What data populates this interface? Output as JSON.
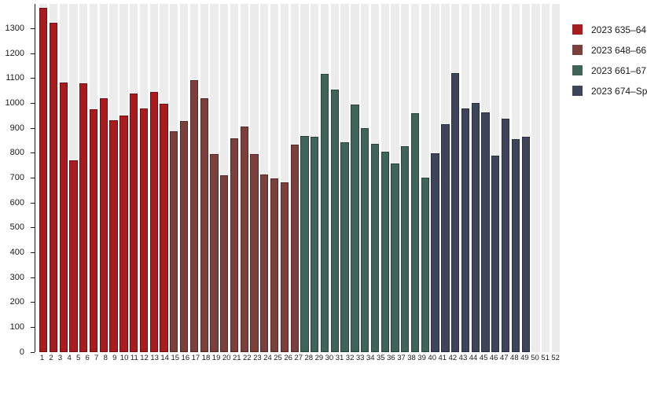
{
  "chart_data": {
    "type": "bar",
    "x": [
      1,
      2,
      3,
      4,
      5,
      6,
      7,
      8,
      9,
      10,
      11,
      12,
      13,
      14,
      15,
      16,
      17,
      18,
      19,
      20,
      21,
      22,
      23,
      24,
      25,
      26,
      27,
      28,
      29,
      30,
      31,
      32,
      33,
      34,
      35,
      36,
      37,
      38,
      39,
      40,
      41,
      42,
      43,
      44,
      45,
      46,
      47,
      48,
      49,
      50,
      51,
      52
    ],
    "values": [
      1385,
      1325,
      1085,
      772,
      1080,
      975,
      1020,
      931,
      952,
      1040,
      979,
      1046,
      999,
      888,
      929,
      1095,
      1022,
      796,
      712,
      861,
      907,
      796,
      715,
      700,
      684,
      835,
      870,
      866,
      1118,
      1057,
      844,
      995,
      900,
      838,
      806,
      760,
      827,
      962,
      703,
      800,
      917,
      1122,
      980,
      1001,
      965,
      789,
      940,
      857,
      865,
      null,
      null,
      null
    ],
    "groups": [
      {
        "label": "2023 635–64",
        "week_start": 1,
        "week_end": 13,
        "color": "#a81b1e",
        "border": "#6f1214"
      },
      {
        "label": "2023 648–66",
        "week_start": 14,
        "week_end": 26,
        "color": "#7b403c",
        "border": "#532a27"
      },
      {
        "label": "2023 661–67",
        "week_start": 27,
        "week_end": 39,
        "color": "#40635a",
        "border": "#2a443d"
      },
      {
        "label": "2023 674–Sp",
        "week_start": 40,
        "week_end": 52,
        "color": "#3e455a",
        "border": "#292f3e"
      }
    ],
    "yticks": [
      0,
      100,
      200,
      300,
      400,
      500,
      600,
      700,
      800,
      900,
      1000,
      1100,
      1200,
      1300
    ],
    "ylim": [
      0,
      1400
    ],
    "title": "",
    "xlabel": "",
    "ylabel": "",
    "grid": false,
    "legend_position": "right",
    "track_color": "#ececec",
    "axis_color": "#1a1a1a"
  },
  "legend": {
    "items": [
      {
        "label": "2023 635–64"
      },
      {
        "label": "2023 648–66"
      },
      {
        "label": "2023 661–67"
      },
      {
        "label": "2023 674–Sp"
      }
    ]
  }
}
